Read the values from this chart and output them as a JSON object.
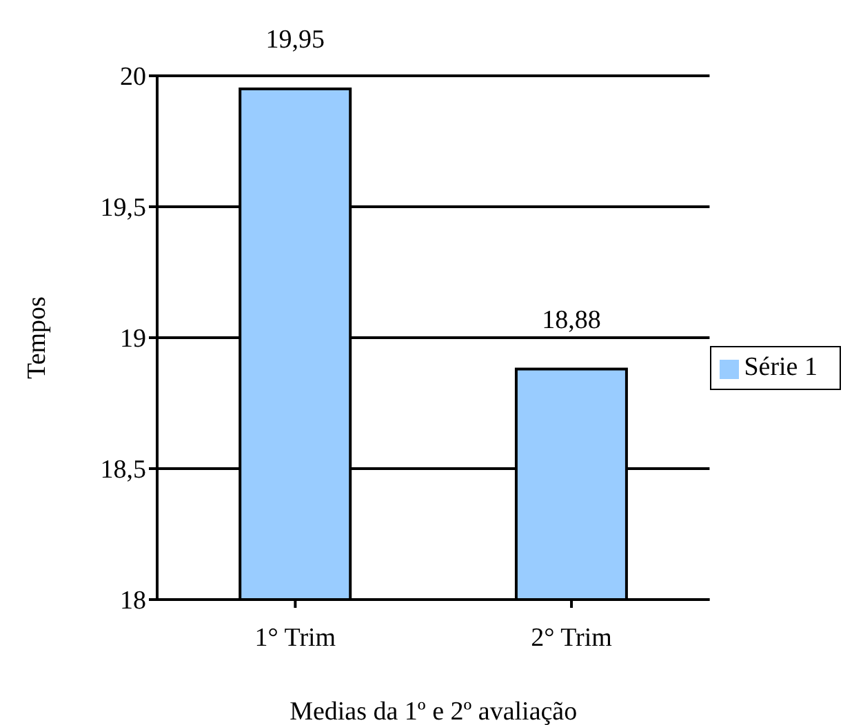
{
  "chart_data": {
    "type": "bar",
    "categories": [
      "1° Trim",
      "2° Trim"
    ],
    "series": [
      {
        "name": "Série 1",
        "color": "#99ccff",
        "values": [
          19.95,
          18.88
        ],
        "value_labels": [
          "19,95",
          "18,88"
        ]
      }
    ],
    "xlabel": "Medias da 1º e 2º avaliação",
    "ylabel": "Tempos",
    "ylim": [
      18,
      20
    ],
    "yticks": [
      18,
      {
        "value": 18.5,
        "label": "18,5"
      },
      19,
      {
        "value": 19.5,
        "label": "19,5"
      },
      20
    ],
    "grid": "y",
    "legend": "right"
  }
}
